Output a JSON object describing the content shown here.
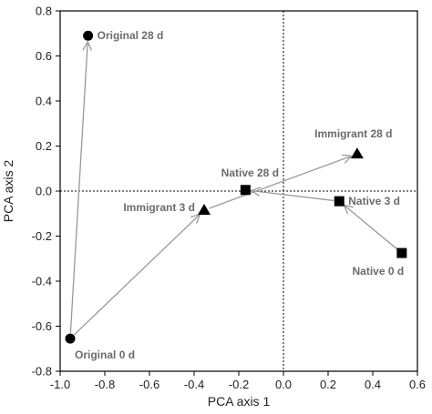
{
  "chart_data": {
    "type": "scatter",
    "title": "",
    "xlabel": "PCA axis 1",
    "ylabel": "PCA axis 2",
    "xlim": [
      -1.0,
      0.6
    ],
    "ylim": [
      -0.8,
      0.8
    ],
    "xticks": [
      "-1.0",
      "-0.8",
      "-0.6",
      "-0.4",
      "-0.2",
      "0.0",
      "0.2",
      "0.4",
      "0.6"
    ],
    "yticks": [
      "0.8",
      "0.6",
      "0.4",
      "0.2",
      "0.0",
      "-0.2",
      "-0.4",
      "-0.6",
      "-0.8"
    ],
    "grid": false,
    "reference_lines": {
      "x": 0,
      "y": 0,
      "style": "dotted"
    },
    "points": [
      {
        "label": "Original 28 d",
        "x": -0.875,
        "y": 0.69,
        "marker": "circle",
        "label_pos": "right"
      },
      {
        "label": "Original 0 d",
        "x": -0.955,
        "y": -0.655,
        "marker": "circle",
        "label_pos": "below"
      },
      {
        "label": "Immigrant 3 d",
        "x": -0.355,
        "y": -0.085,
        "marker": "triangle",
        "label_pos": "left"
      },
      {
        "label": "Immigrant 28 d",
        "x": 0.33,
        "y": 0.165,
        "marker": "triangle",
        "label_pos": "above"
      },
      {
        "label": "Native 28 d",
        "x": -0.17,
        "y": 0.005,
        "marker": "square",
        "label_pos": "above"
      },
      {
        "label": "Native 3 d",
        "x": 0.25,
        "y": -0.045,
        "marker": "square",
        "label_pos": "right"
      },
      {
        "label": "Native 0 d",
        "x": 0.53,
        "y": -0.275,
        "marker": "square",
        "label_pos": "below"
      }
    ],
    "arrows": [
      {
        "from": [
          -0.955,
          -0.655
        ],
        "to": [
          -0.875,
          0.69
        ]
      },
      {
        "from": [
          -0.955,
          -0.655
        ],
        "to": [
          -0.355,
          -0.085
        ]
      },
      {
        "from": [
          -0.355,
          -0.085
        ],
        "to": [
          0.33,
          0.165
        ]
      },
      {
        "from": [
          0.53,
          -0.275
        ],
        "to": [
          0.25,
          -0.045
        ]
      },
      {
        "from": [
          0.25,
          -0.045
        ],
        "to": [
          -0.17,
          0.005
        ]
      }
    ],
    "colors": {
      "markers": "#000000",
      "arrows": "#999999",
      "labels": "#6b6b6b"
    }
  }
}
